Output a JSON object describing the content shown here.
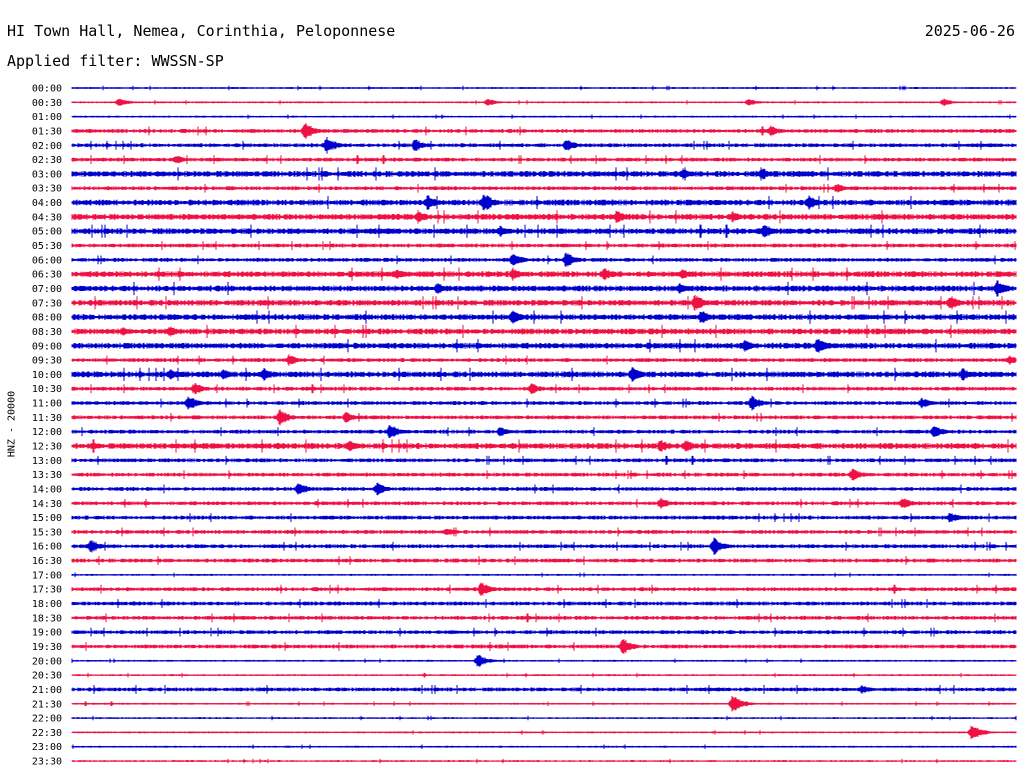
{
  "header": {
    "station": "HI Town Hall, Nemea, Corinthia, Peloponnese",
    "date": "2025-06-26",
    "filter_label": "Applied filter: WWSSN-SP"
  },
  "chart_data": {
    "type": "line",
    "title": "HI Town Hall, Nemea, Corinthia, Peloponnese",
    "ylabel": "HNZ - 20000",
    "xlabel": "",
    "rows": [
      "00:00",
      "00:30",
      "01:00",
      "01:30",
      "02:00",
      "02:30",
      "03:00",
      "03:30",
      "04:00",
      "04:30",
      "05:00",
      "05:30",
      "06:00",
      "06:30",
      "07:00",
      "07:30",
      "08:00",
      "08:30",
      "09:00",
      "09:30",
      "10:00",
      "10:30",
      "11:00",
      "11:30",
      "12:00",
      "12:30",
      "13:00",
      "13:30",
      "14:00",
      "14:30",
      "15:00",
      "15:30",
      "16:00",
      "16:30",
      "17:00",
      "17:30",
      "18:00",
      "18:30",
      "19:00",
      "19:30",
      "20:00",
      "20:30",
      "21:00",
      "21:30",
      "22:00",
      "22:30",
      "23:00",
      "23:30"
    ],
    "trace_colors": [
      "#0000cc",
      "#ee1144"
    ],
    "baseline_amplitude": [
      1,
      1,
      1,
      2,
      2,
      2,
      3,
      2,
      3,
      3,
      3,
      2,
      2,
      3,
      3,
      3,
      3,
      3,
      3,
      2,
      3,
      2,
      2,
      2,
      2,
      3,
      2,
      2,
      2,
      2,
      2,
      2,
      2,
      2,
      1,
      2,
      2,
      2,
      2,
      2,
      1,
      1,
      2,
      1,
      1,
      1,
      1,
      1
    ],
    "events": [
      {
        "row": 1,
        "minute": 1.5,
        "amp": 5
      },
      {
        "row": 1,
        "minute": 13.2,
        "amp": 4
      },
      {
        "row": 1,
        "minute": 21.5,
        "amp": 4
      },
      {
        "row": 1,
        "minute": 27.7,
        "amp": 4
      },
      {
        "row": 3,
        "minute": 7.4,
        "amp": 10
      },
      {
        "row": 3,
        "minute": 22.2,
        "amp": 6
      },
      {
        "row": 4,
        "minute": 8.1,
        "amp": 9
      },
      {
        "row": 4,
        "minute": 10.9,
        "amp": 7
      },
      {
        "row": 4,
        "minute": 15.7,
        "amp": 7
      },
      {
        "row": 5,
        "minute": 3.3,
        "amp": 5
      },
      {
        "row": 6,
        "minute": 19.4,
        "amp": 6
      },
      {
        "row": 6,
        "minute": 21.9,
        "amp": 7
      },
      {
        "row": 7,
        "minute": 24.3,
        "amp": 5
      },
      {
        "row": 8,
        "minute": 11.3,
        "amp": 8
      },
      {
        "row": 8,
        "minute": 13.1,
        "amp": 10
      },
      {
        "row": 8,
        "minute": 23.4,
        "amp": 8
      },
      {
        "row": 9,
        "minute": 11.0,
        "amp": 7
      },
      {
        "row": 9,
        "minute": 17.3,
        "amp": 7
      },
      {
        "row": 9,
        "minute": 21.0,
        "amp": 6
      },
      {
        "row": 10,
        "minute": 13.6,
        "amp": 6
      },
      {
        "row": 10,
        "minute": 22.0,
        "amp": 8
      },
      {
        "row": 12,
        "minute": 14.0,
        "amp": 8
      },
      {
        "row": 12,
        "minute": 15.7,
        "amp": 8
      },
      {
        "row": 13,
        "minute": 10.3,
        "amp": 6
      },
      {
        "row": 13,
        "minute": 14.0,
        "amp": 7
      },
      {
        "row": 13,
        "minute": 16.9,
        "amp": 7
      },
      {
        "row": 13,
        "minute": 19.4,
        "amp": 6
      },
      {
        "row": 14,
        "minute": 11.6,
        "amp": 6
      },
      {
        "row": 14,
        "minute": 19.3,
        "amp": 6
      },
      {
        "row": 14,
        "minute": 29.4,
        "amp": 9
      },
      {
        "row": 15,
        "minute": 19.8,
        "amp": 9
      },
      {
        "row": 15,
        "minute": 27.9,
        "amp": 8
      },
      {
        "row": 16,
        "minute": 14.0,
        "amp": 7
      },
      {
        "row": 16,
        "minute": 20.0,
        "amp": 8
      },
      {
        "row": 17,
        "minute": 1.6,
        "amp": 5
      },
      {
        "row": 17,
        "minute": 3.1,
        "amp": 6
      },
      {
        "row": 18,
        "minute": 21.4,
        "amp": 7
      },
      {
        "row": 18,
        "minute": 23.7,
        "amp": 9
      },
      {
        "row": 19,
        "minute": 6.9,
        "amp": 6
      },
      {
        "row": 19,
        "minute": 29.8,
        "amp": 5
      },
      {
        "row": 20,
        "minute": 3.1,
        "amp": 6
      },
      {
        "row": 20,
        "minute": 4.8,
        "amp": 6
      },
      {
        "row": 20,
        "minute": 6.1,
        "amp": 7
      },
      {
        "row": 20,
        "minute": 17.8,
        "amp": 8
      },
      {
        "row": 20,
        "minute": 28.3,
        "amp": 7
      },
      {
        "row": 21,
        "minute": 3.9,
        "amp": 7
      },
      {
        "row": 21,
        "minute": 14.6,
        "amp": 6
      },
      {
        "row": 22,
        "minute": 3.7,
        "amp": 8
      },
      {
        "row": 22,
        "minute": 21.6,
        "amp": 8
      },
      {
        "row": 22,
        "minute": 27.0,
        "amp": 6
      },
      {
        "row": 23,
        "minute": 6.6,
        "amp": 9
      },
      {
        "row": 23,
        "minute": 8.7,
        "amp": 6
      },
      {
        "row": 24,
        "minute": 10.1,
        "amp": 8
      },
      {
        "row": 24,
        "minute": 13.6,
        "amp": 6
      },
      {
        "row": 24,
        "minute": 27.4,
        "amp": 7
      },
      {
        "row": 25,
        "minute": 8.8,
        "amp": 6
      },
      {
        "row": 25,
        "minute": 18.7,
        "amp": 7
      },
      {
        "row": 25,
        "minute": 19.5,
        "amp": 7
      },
      {
        "row": 27,
        "minute": 24.8,
        "amp": 7
      },
      {
        "row": 28,
        "minute": 7.2,
        "amp": 7
      },
      {
        "row": 28,
        "minute": 9.7,
        "amp": 7
      },
      {
        "row": 29,
        "minute": 18.7,
        "amp": 6
      },
      {
        "row": 29,
        "minute": 26.4,
        "amp": 6
      },
      {
        "row": 30,
        "minute": 27.9,
        "amp": 6
      },
      {
        "row": 31,
        "minute": 11.9,
        "amp": 5
      },
      {
        "row": 32,
        "minute": 0.6,
        "amp": 7
      },
      {
        "row": 32,
        "minute": 20.4,
        "amp": 9
      },
      {
        "row": 35,
        "minute": 13.0,
        "amp": 8
      },
      {
        "row": 39,
        "minute": 17.5,
        "amp": 9
      },
      {
        "row": 40,
        "minute": 12.9,
        "amp": 7
      },
      {
        "row": 42,
        "minute": 25.1,
        "amp": 5
      },
      {
        "row": 43,
        "minute": 21.0,
        "amp": 10
      },
      {
        "row": 45,
        "minute": 28.6,
        "amp": 9
      }
    ],
    "grid": false,
    "legend": "none"
  }
}
